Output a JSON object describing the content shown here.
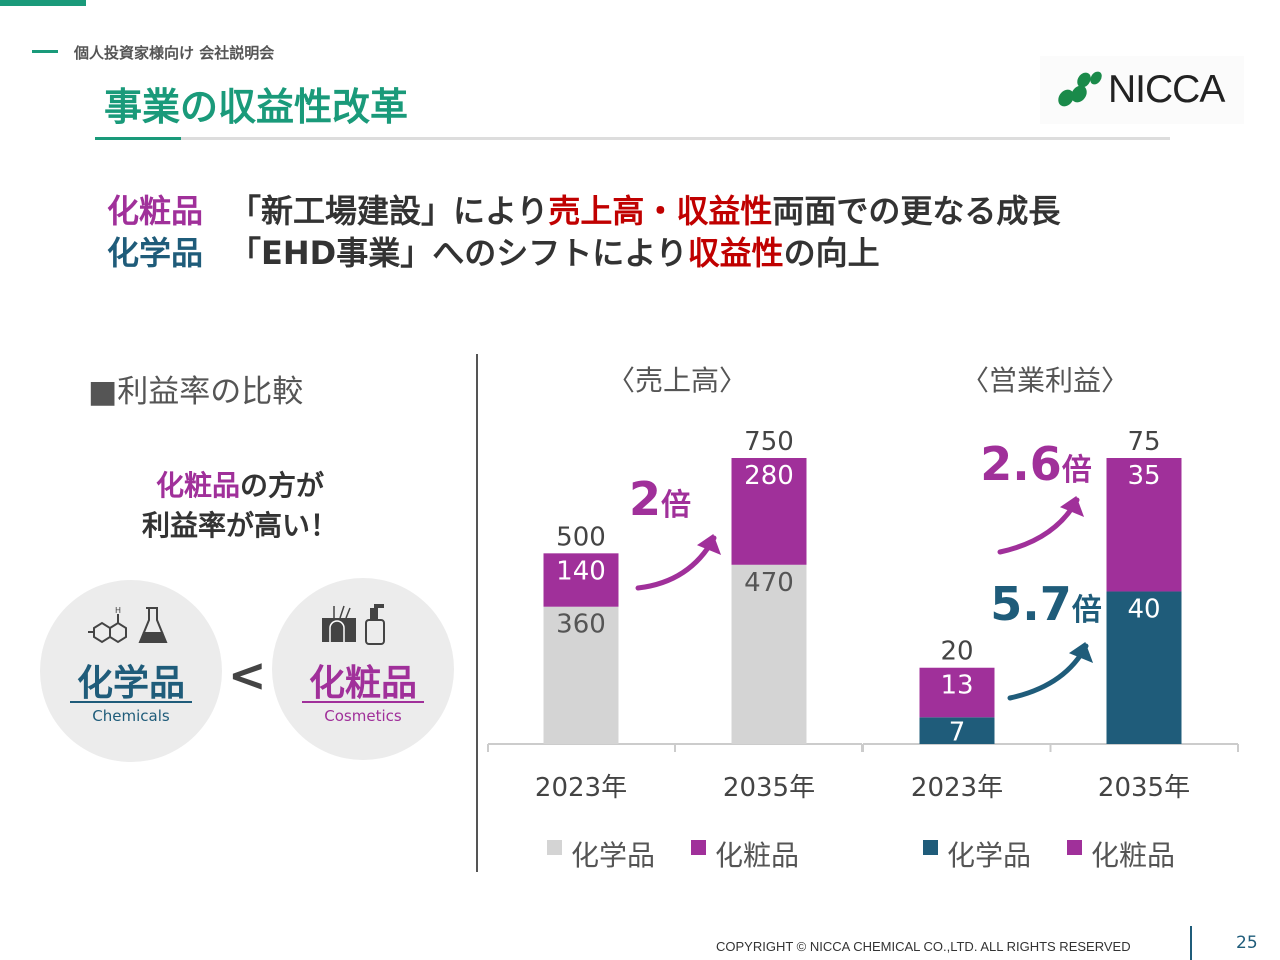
{
  "header": {
    "subtitle": "個人投資家様向け 会社説明会",
    "title": "事業の収益性改革",
    "logo_text": "NICCA"
  },
  "headline": {
    "line1": [
      "化粧品",
      "「新工場建設」により",
      "売上高・収益性",
      "両面での更なる成長"
    ],
    "line2": [
      "化学品",
      "「EHD事業」へのシフトにより",
      "収益性",
      "の向上"
    ]
  },
  "comparison": {
    "heading": "■利益率の比較",
    "note_strong": "化粧品",
    "note_rest": "の方が",
    "note_line2": "利益率が高い！",
    "chemicals_label": "化学品",
    "chemicals_en": "Chemicals",
    "cosmetics_label": "化粧品",
    "cosmetics_en": "Cosmetics",
    "comparator": "<",
    "chemicals_icon": "molecule-flask-icon",
    "cosmetics_icon": "hair-bottle-icon"
  },
  "chart_data": [
    {
      "type": "bar",
      "stacked": true,
      "title": "〈売上高〉",
      "categories": [
        "2023年",
        "2035年"
      ],
      "series": [
        {
          "name": "化学品",
          "values": [
            360,
            470
          ],
          "color": "#d4d4d4"
        },
        {
          "name": "化粧品",
          "values": [
            140,
            280
          ],
          "color": "#a0309a"
        }
      ],
      "totals": [
        500,
        750
      ],
      "annotations": [
        {
          "text": "2",
          "suffix": "倍",
          "color": "#a0309a"
        }
      ],
      "ylim": [
        0,
        750
      ],
      "legend": "bottom",
      "grid": false
    },
    {
      "type": "bar",
      "stacked": true,
      "title": "〈営業利益〉",
      "categories": [
        "2023年",
        "2035年"
      ],
      "series": [
        {
          "name": "化学品",
          "values": [
            7,
            40
          ],
          "color": "#1f5c7a"
        },
        {
          "name": "化粧品",
          "values": [
            13,
            35
          ],
          "color": "#a0309a"
        }
      ],
      "totals": [
        20,
        75
      ],
      "annotations": [
        {
          "text": "2.6",
          "suffix": "倍",
          "color": "#a0309a"
        },
        {
          "text": "5.7",
          "suffix": "倍",
          "color": "#1f5c7a"
        }
      ],
      "ylim": [
        0,
        75
      ],
      "legend": "bottom",
      "grid": false
    }
  ],
  "footer": {
    "copyright": "COPYRIGHT © NICCA CHEMICAL CO.,LTD. ALL RIGHTS RESERVED",
    "page": "25"
  }
}
